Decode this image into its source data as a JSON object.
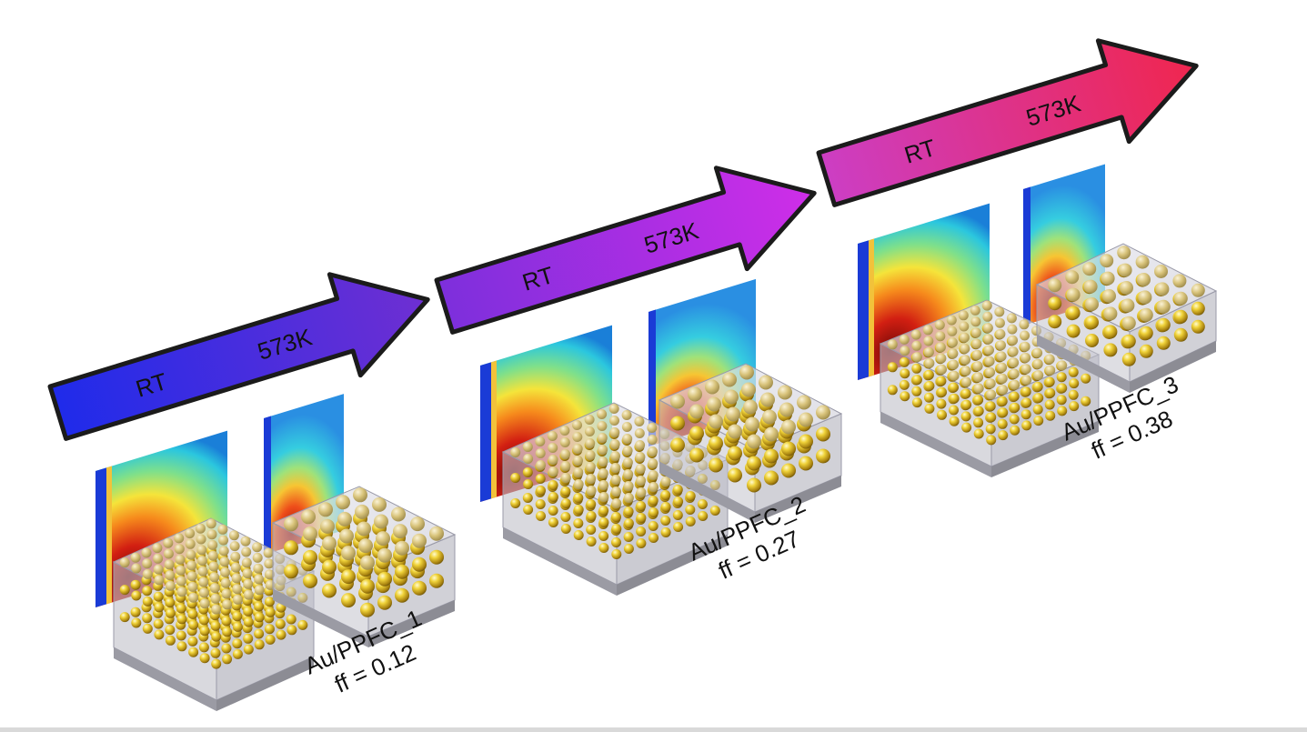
{
  "panels": [
    {
      "id": "panel-1",
      "rt_label": "RT",
      "hot_label": "573K",
      "sample_name": "Au/PPFC_1",
      "fill_factor": "ff = 0.12",
      "arrow_colors": [
        "#2a2ee8",
        "#6a2ad0"
      ]
    },
    {
      "id": "panel-2",
      "rt_label": "RT",
      "hot_label": "573K",
      "sample_name": "Au/PPFC_2",
      "fill_factor": "ff = 0.27",
      "arrow_colors": [
        "#7a2ce0",
        "#c42ae8"
      ]
    },
    {
      "id": "panel-3",
      "rt_label": "RT",
      "hot_label": "573K",
      "sample_name": "Au/PPFC_3",
      "fill_factor": "ff = 0.38",
      "arrow_colors": [
        "#c83cc8",
        "#ee2a55"
      ]
    }
  ]
}
